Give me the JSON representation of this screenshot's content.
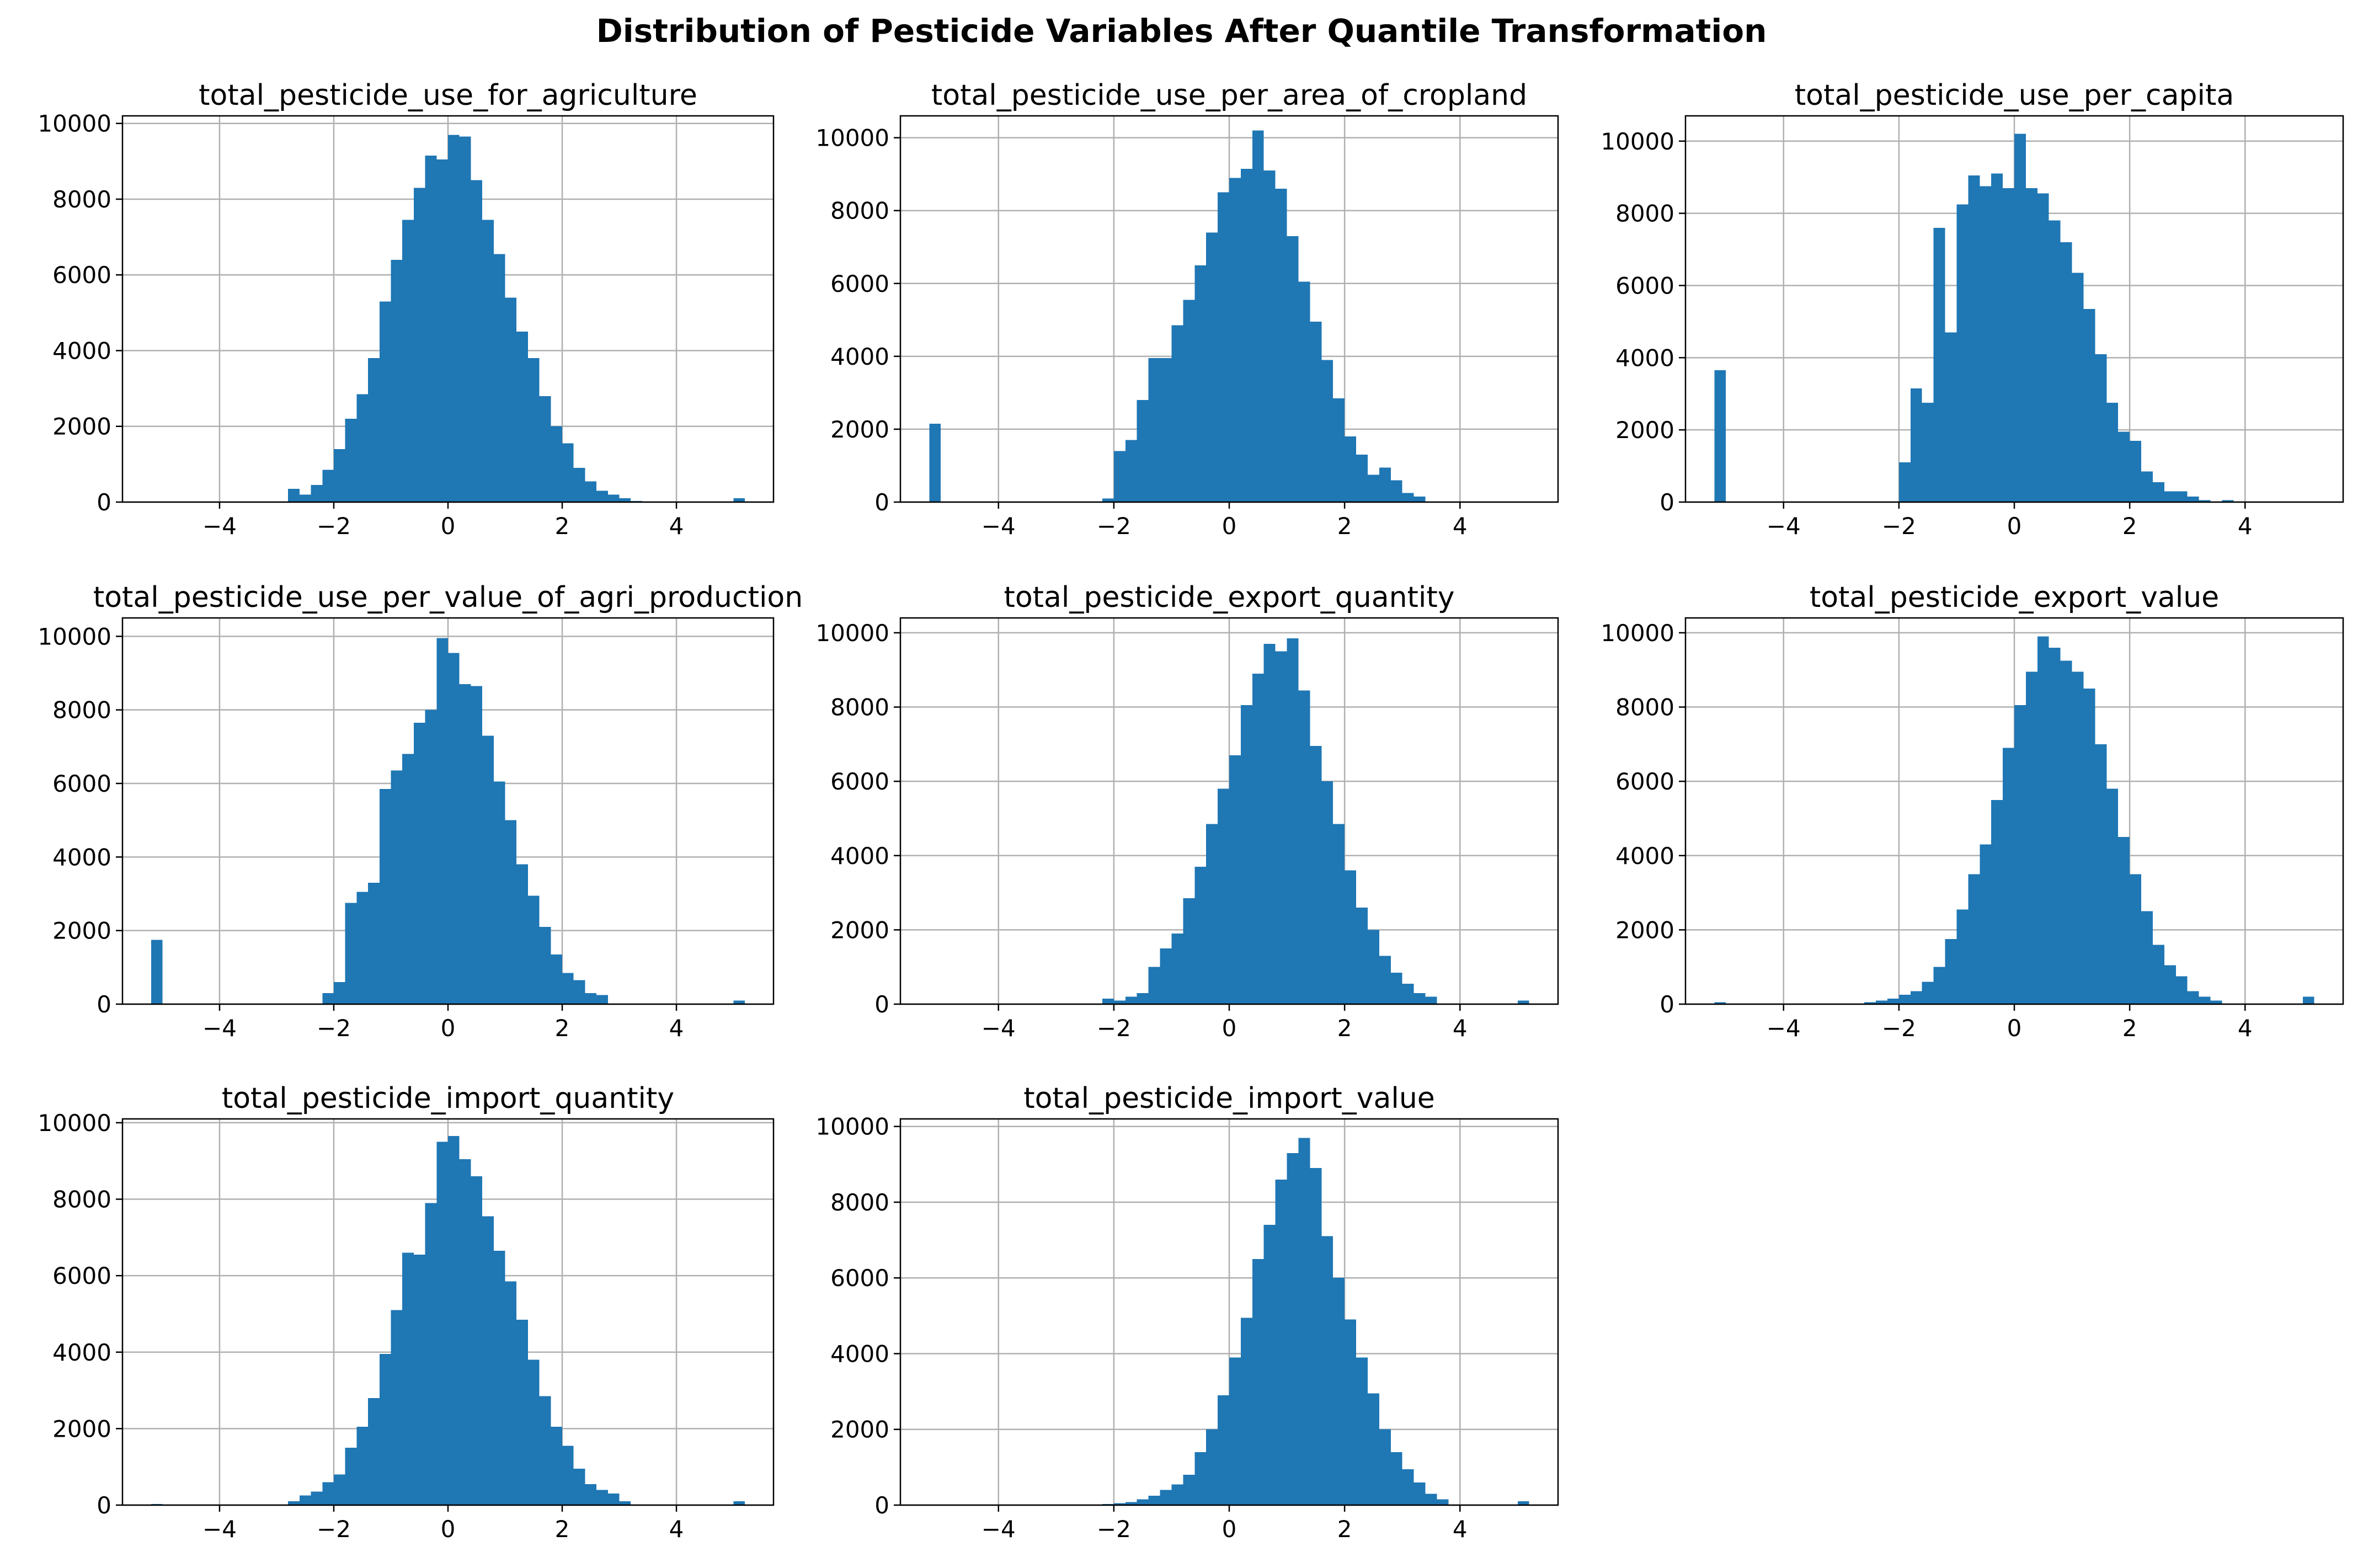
{
  "figure": {
    "title": "Distribution of Pesticide Variables After Quantile Transformation",
    "bar_color": "#1f77b4",
    "grid_color": "#b0b0b0",
    "axis_color": "#000000"
  },
  "chart_data": [
    {
      "type": "bar",
      "title": "total_pesticide_use_for_agriculture",
      "xlim": [
        -5.7,
        5.7
      ],
      "ylim": [
        0,
        10200
      ],
      "xticks": [
        -4,
        -2,
        0,
        2,
        4
      ],
      "xtick_labels": [
        "−4",
        "−2",
        "0",
        "2",
        "4"
      ],
      "yticks": [
        0,
        2000,
        4000,
        6000,
        8000,
        10000
      ],
      "ytick_labels": [
        "0",
        "2000",
        "4000",
        "6000",
        "8000",
        "10000"
      ],
      "grid": true,
      "bin_start": -5.2,
      "bin_width": 0.2,
      "values": [
        0,
        0,
        0,
        0,
        0,
        0,
        0,
        0,
        0,
        0,
        0,
        0,
        350,
        200,
        450,
        850,
        1400,
        2200,
        2850,
        3800,
        5300,
        6400,
        7450,
        8300,
        9150,
        9050,
        9700,
        9650,
        8500,
        7450,
        6550,
        5400,
        4500,
        3800,
        2800,
        2000,
        1550,
        900,
        550,
        300,
        200,
        100,
        30,
        0,
        0,
        0,
        0,
        0,
        0,
        0,
        0,
        100
      ]
    },
    {
      "type": "bar",
      "title": "total_pesticide_use_per_area_of_cropland",
      "xlim": [
        -5.7,
        5.7
      ],
      "ylim": [
        0,
        10600
      ],
      "xticks": [
        -4,
        -2,
        0,
        2,
        4
      ],
      "xtick_labels": [
        "−4",
        "−2",
        "0",
        "2",
        "4"
      ],
      "yticks": [
        0,
        2000,
        4000,
        6000,
        8000,
        10000
      ],
      "ytick_labels": [
        "0",
        "2000",
        "4000",
        "6000",
        "8000",
        "10000"
      ],
      "grid": true,
      "bin_start": -5.2,
      "bin_width": 0.2,
      "values": [
        2150,
        0,
        0,
        0,
        0,
        0,
        0,
        0,
        0,
        0,
        0,
        0,
        0,
        0,
        0,
        100,
        1400,
        1700,
        2800,
        3950,
        3950,
        4850,
        5550,
        6500,
        7400,
        8500,
        8900,
        9150,
        10200,
        9100,
        8600,
        7300,
        6050,
        4950,
        3900,
        2850,
        1800,
        1300,
        750,
        950,
        600,
        250,
        150,
        0,
        0,
        0,
        0,
        0,
        0,
        0,
        0,
        0
      ]
    },
    {
      "type": "bar",
      "title": "total_pesticide_use_per_capita",
      "xlim": [
        -5.7,
        5.7
      ],
      "ylim": [
        0,
        10700
      ],
      "xticks": [
        -4,
        -2,
        0,
        2,
        4
      ],
      "xtick_labels": [
        "−4",
        "−2",
        "0",
        "2",
        "4"
      ],
      "yticks": [
        0,
        2000,
        4000,
        6000,
        8000,
        10000
      ],
      "ytick_labels": [
        "0",
        "2000",
        "4000",
        "6000",
        "8000",
        "10000"
      ],
      "grid": true,
      "bin_start": -5.2,
      "bin_width": 0.2,
      "values": [
        3650,
        0,
        0,
        0,
        0,
        0,
        0,
        0,
        0,
        0,
        0,
        0,
        0,
        0,
        0,
        0,
        1100,
        3150,
        2750,
        7600,
        4700,
        8250,
        9050,
        8750,
        9100,
        8700,
        10200,
        8700,
        8550,
        7800,
        7200,
        6350,
        5350,
        4100,
        2750,
        1950,
        1700,
        850,
        550,
        300,
        300,
        150,
        50,
        0,
        50,
        0,
        0,
        0,
        0,
        0,
        0,
        0
      ]
    },
    {
      "type": "bar",
      "title": "total_pesticide_use_per_value_of_agri_production",
      "xlim": [
        -5.7,
        5.7
      ],
      "ylim": [
        0,
        10500
      ],
      "xticks": [
        -4,
        -2,
        0,
        2,
        4
      ],
      "xtick_labels": [
        "−4",
        "−2",
        "0",
        "2",
        "4"
      ],
      "yticks": [
        0,
        2000,
        4000,
        6000,
        8000,
        10000
      ],
      "ytick_labels": [
        "0",
        "2000",
        "4000",
        "6000",
        "8000",
        "10000"
      ],
      "grid": true,
      "bin_start": -5.2,
      "bin_width": 0.2,
      "values": [
        1750,
        0,
        0,
        0,
        0,
        0,
        0,
        0,
        0,
        0,
        0,
        0,
        0,
        0,
        0,
        300,
        600,
        2750,
        3050,
        3300,
        5850,
        6350,
        6800,
        7650,
        8000,
        9950,
        9550,
        8700,
        8650,
        7300,
        6050,
        5000,
        3800,
        2950,
        2100,
        1350,
        850,
        650,
        300,
        250,
        0,
        0,
        0,
        0,
        0,
        0,
        0,
        0,
        0,
        0,
        0,
        100
      ]
    },
    {
      "type": "bar",
      "title": "total_pesticide_export_quantity",
      "xlim": [
        -5.7,
        5.7
      ],
      "ylim": [
        0,
        10400
      ],
      "xticks": [
        -4,
        -2,
        0,
        2,
        4
      ],
      "xtick_labels": [
        "−4",
        "−2",
        "0",
        "2",
        "4"
      ],
      "yticks": [
        0,
        2000,
        4000,
        6000,
        8000,
        10000
      ],
      "ytick_labels": [
        "0",
        "2000",
        "4000",
        "6000",
        "8000",
        "10000"
      ],
      "grid": true,
      "bin_start": -5.2,
      "bin_width": 0.2,
      "values": [
        0,
        0,
        0,
        0,
        0,
        0,
        0,
        0,
        0,
        0,
        0,
        0,
        0,
        0,
        0,
        150,
        100,
        200,
        300,
        1000,
        1500,
        1900,
        2850,
        3700,
        4850,
        5800,
        6700,
        8050,
        8900,
        9700,
        9500,
        9850,
        8450,
        6950,
        6000,
        4850,
        3600,
        2600,
        2000,
        1300,
        850,
        550,
        300,
        200,
        0,
        0,
        0,
        0,
        0,
        0,
        0,
        100
      ]
    },
    {
      "type": "bar",
      "title": "total_pesticide_export_value",
      "xlim": [
        -5.7,
        5.7
      ],
      "ylim": [
        0,
        10400
      ],
      "xticks": [
        -4,
        -2,
        0,
        2,
        4
      ],
      "xtick_labels": [
        "−4",
        "−2",
        "0",
        "2",
        "4"
      ],
      "yticks": [
        0,
        2000,
        4000,
        6000,
        8000,
        10000
      ],
      "ytick_labels": [
        "0",
        "2000",
        "4000",
        "6000",
        "8000",
        "10000"
      ],
      "grid": true,
      "bin_start": -5.2,
      "bin_width": 0.2,
      "values": [
        50,
        0,
        0,
        0,
        0,
        0,
        0,
        0,
        0,
        0,
        0,
        0,
        0,
        50,
        100,
        150,
        250,
        350,
        600,
        1000,
        1750,
        2550,
        3500,
        4300,
        5500,
        6900,
        8050,
        8950,
        9900,
        9600,
        9250,
        8950,
        8500,
        7000,
        5800,
        4500,
        3500,
        2500,
        1600,
        1050,
        750,
        350,
        200,
        100,
        0,
        0,
        0,
        0,
        0,
        0,
        0,
        200
      ]
    },
    {
      "type": "bar",
      "title": "total_pesticide_import_quantity",
      "xlim": [
        -5.7,
        5.7
      ],
      "ylim": [
        0,
        10100
      ],
      "xticks": [
        -4,
        -2,
        0,
        2,
        4
      ],
      "xtick_labels": [
        "−4",
        "−2",
        "0",
        "2",
        "4"
      ],
      "yticks": [
        0,
        2000,
        4000,
        6000,
        8000,
        10000
      ],
      "ytick_labels": [
        "0",
        "2000",
        "4000",
        "6000",
        "8000",
        "10000"
      ],
      "grid": true,
      "bin_start": -5.2,
      "bin_width": 0.2,
      "values": [
        30,
        0,
        0,
        0,
        0,
        0,
        0,
        0,
        0,
        0,
        0,
        0,
        100,
        250,
        350,
        600,
        800,
        1500,
        2050,
        2800,
        3950,
        5100,
        6600,
        6550,
        7900,
        9500,
        9650,
        9050,
        8600,
        7550,
        6650,
        5850,
        4850,
        3800,
        2850,
        2050,
        1550,
        950,
        550,
        400,
        300,
        100,
        0,
        0,
        0,
        0,
        0,
        0,
        0,
        0,
        0,
        100
      ]
    },
    {
      "type": "bar",
      "title": "total_pesticide_import_value",
      "xlim": [
        -5.7,
        5.7
      ],
      "ylim": [
        0,
        10200
      ],
      "xticks": [
        -4,
        -2,
        0,
        2,
        4
      ],
      "xtick_labels": [
        "−4",
        "−2",
        "0",
        "2",
        "4"
      ],
      "yticks": [
        0,
        2000,
        4000,
        6000,
        8000,
        10000
      ],
      "ytick_labels": [
        "0",
        "2000",
        "4000",
        "6000",
        "8000",
        "10000"
      ],
      "grid": true,
      "bin_start": -5.2,
      "bin_width": 0.2,
      "values": [
        0,
        0,
        0,
        0,
        0,
        0,
        0,
        0,
        0,
        0,
        0,
        0,
        0,
        0,
        0,
        30,
        50,
        80,
        150,
        250,
        400,
        550,
        800,
        1400,
        2000,
        2900,
        3900,
        4950,
        6500,
        7400,
        8600,
        9300,
        9700,
        8900,
        7100,
        6000,
        4900,
        3900,
        2950,
        2000,
        1400,
        950,
        600,
        300,
        150,
        0,
        0,
        0,
        0,
        0,
        0,
        100
      ]
    }
  ]
}
